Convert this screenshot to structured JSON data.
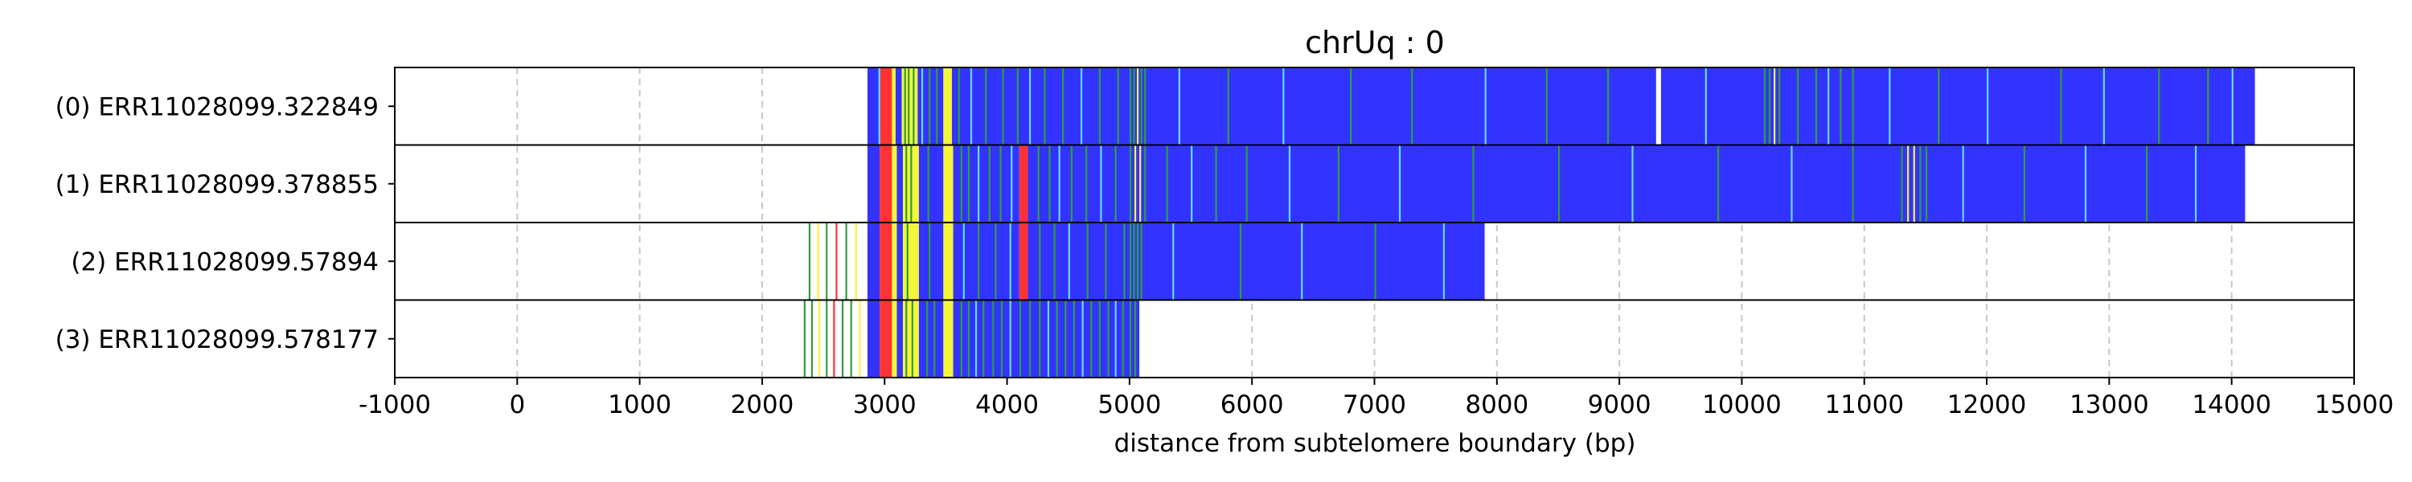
{
  "chart_data": {
    "type": "bar",
    "title": "chrUq : 0",
    "xlabel": "distance from subtelomere boundary (bp)",
    "ylabel": "",
    "xlim": [
      -1000,
      15000
    ],
    "xticks": [
      -1000,
      0,
      1000,
      2000,
      3000,
      4000,
      5000,
      6000,
      7000,
      8000,
      9000,
      10000,
      11000,
      12000,
      13000,
      14000,
      15000
    ],
    "xtick_labels": [
      "-1000",
      "0",
      "1000",
      "2000",
      "3000",
      "4000",
      "5000",
      "6000",
      "7000",
      "8000",
      "9000",
      "10000",
      "11000",
      "12000",
      "13000",
      "14000",
      "15000"
    ],
    "grid": "vertical dashed",
    "colors": {
      "background_repeat": "#3333ff",
      "variant_green": "#2e9e3e",
      "variant_yellow": "#f5f53c",
      "variant_red": "#ff3333",
      "variant_cyan": "#66d9ff",
      "grid": "#c8c8c8"
    },
    "reads": [
      {
        "label": "(0) ERR11028099.322849",
        "segments": [
          {
            "start": 2860,
            "end": 2960,
            "color": "#3333ff"
          },
          {
            "start": 2960,
            "end": 3060,
            "color": "#ff3333"
          },
          {
            "start": 3060,
            "end": 3090,
            "color": "#f5f53c"
          },
          {
            "start": 3090,
            "end": 3140,
            "color": "#3333ff"
          },
          {
            "start": 3140,
            "end": 3270,
            "color": "#f5f53c"
          },
          {
            "start": 3270,
            "end": 3480,
            "color": "#3333ff"
          },
          {
            "start": 3480,
            "end": 3550,
            "color": "#f5f53c"
          },
          {
            "start": 3550,
            "end": 9300,
            "color": "#3333ff"
          },
          {
            "start": 9340,
            "end": 14190,
            "color": "#3333ff"
          }
        ],
        "marks": [
          {
            "pos": 2950,
            "color": "#66d9ff"
          },
          {
            "pos": 3160,
            "color": "#2e9e3e"
          },
          {
            "pos": 3190,
            "color": "#2e9e3e"
          },
          {
            "pos": 3230,
            "color": "#2e9e3e"
          },
          {
            "pos": 3300,
            "color": "#66d9ff"
          },
          {
            "pos": 3360,
            "color": "#2e9e3e"
          },
          {
            "pos": 3420,
            "color": "#2e9e3e"
          },
          {
            "pos": 3600,
            "color": "#2e9e3e"
          },
          {
            "pos": 3700,
            "color": "#66d9ff"
          },
          {
            "pos": 3820,
            "color": "#2e9e3e"
          },
          {
            "pos": 3960,
            "color": "#2e9e3e"
          },
          {
            "pos": 4080,
            "color": "#2e9e3e"
          },
          {
            "pos": 4180,
            "color": "#66d9ff"
          },
          {
            "pos": 4300,
            "color": "#2e9e3e"
          },
          {
            "pos": 4450,
            "color": "#2e9e3e"
          },
          {
            "pos": 4600,
            "color": "#66d9ff"
          },
          {
            "pos": 4750,
            "color": "#2e9e3e"
          },
          {
            "pos": 4900,
            "color": "#2e9e3e"
          },
          {
            "pos": 5000,
            "color": "#2e9e3e"
          },
          {
            "pos": 5030,
            "color": "#2e9e3e"
          },
          {
            "pos": 5060,
            "color": "#f5f53c"
          },
          {
            "pos": 5090,
            "color": "#2e9e3e"
          },
          {
            "pos": 5120,
            "color": "#2e9e3e"
          },
          {
            "pos": 5400,
            "color": "#66d9ff"
          },
          {
            "pos": 5800,
            "color": "#2e9e3e"
          },
          {
            "pos": 6250,
            "color": "#66d9ff"
          },
          {
            "pos": 6800,
            "color": "#2e9e3e"
          },
          {
            "pos": 7300,
            "color": "#2e9e3e"
          },
          {
            "pos": 7900,
            "color": "#66d9ff"
          },
          {
            "pos": 8400,
            "color": "#2e9e3e"
          },
          {
            "pos": 8900,
            "color": "#2e9e3e"
          },
          {
            "pos": 9700,
            "color": "#66d9ff"
          },
          {
            "pos": 10180,
            "color": "#2e9e3e"
          },
          {
            "pos": 10220,
            "color": "#2e9e3e"
          },
          {
            "pos": 10260,
            "color": "#f5f53c"
          },
          {
            "pos": 10300,
            "color": "#2e9e3e"
          },
          {
            "pos": 10450,
            "color": "#2e9e3e"
          },
          {
            "pos": 10600,
            "color": "#2e9e3e"
          },
          {
            "pos": 10700,
            "color": "#66d9ff"
          },
          {
            "pos": 10800,
            "color": "#2e9e3e"
          },
          {
            "pos": 10900,
            "color": "#2e9e3e"
          },
          {
            "pos": 11200,
            "color": "#66d9ff"
          },
          {
            "pos": 11600,
            "color": "#2e9e3e"
          },
          {
            "pos": 12000,
            "color": "#66d9ff"
          },
          {
            "pos": 12600,
            "color": "#2e9e3e"
          },
          {
            "pos": 12950,
            "color": "#66d9ff"
          },
          {
            "pos": 13400,
            "color": "#2e9e3e"
          },
          {
            "pos": 13800,
            "color": "#2e9e3e"
          },
          {
            "pos": 14000,
            "color": "#66d9ff"
          }
        ]
      },
      {
        "label": "(1) ERR11028099.378855",
        "segments": [
          {
            "start": 2860,
            "end": 2960,
            "color": "#3333ff"
          },
          {
            "start": 2960,
            "end": 3060,
            "color": "#ff3333"
          },
          {
            "start": 3060,
            "end": 3100,
            "color": "#f5f53c"
          },
          {
            "start": 3100,
            "end": 3150,
            "color": "#3333ff"
          },
          {
            "start": 3150,
            "end": 3280,
            "color": "#f5f53c"
          },
          {
            "start": 3280,
            "end": 3480,
            "color": "#3333ff"
          },
          {
            "start": 3480,
            "end": 3560,
            "color": "#f5f53c"
          },
          {
            "start": 3560,
            "end": 4100,
            "color": "#3333ff"
          },
          {
            "start": 4100,
            "end": 4170,
            "color": "#ff3333"
          },
          {
            "start": 4170,
            "end": 14110,
            "color": "#3333ff"
          }
        ],
        "marks": [
          {
            "pos": 3170,
            "color": "#2e9e3e"
          },
          {
            "pos": 3210,
            "color": "#2e9e3e"
          },
          {
            "pos": 3350,
            "color": "#2e9e3e"
          },
          {
            "pos": 3620,
            "color": "#2e9e3e"
          },
          {
            "pos": 3680,
            "color": "#2e9e3e"
          },
          {
            "pos": 3760,
            "color": "#66d9ff"
          },
          {
            "pos": 3850,
            "color": "#2e9e3e"
          },
          {
            "pos": 3940,
            "color": "#2e9e3e"
          },
          {
            "pos": 4030,
            "color": "#66d9ff"
          },
          {
            "pos": 4250,
            "color": "#2e9e3e"
          },
          {
            "pos": 4340,
            "color": "#2e9e3e"
          },
          {
            "pos": 4420,
            "color": "#66d9ff"
          },
          {
            "pos": 4520,
            "color": "#2e9e3e"
          },
          {
            "pos": 4640,
            "color": "#2e9e3e"
          },
          {
            "pos": 4760,
            "color": "#66d9ff"
          },
          {
            "pos": 4880,
            "color": "#2e9e3e"
          },
          {
            "pos": 5000,
            "color": "#2e9e3e"
          },
          {
            "pos": 5040,
            "color": "#f5f53c"
          },
          {
            "pos": 5080,
            "color": "#f5f53c"
          },
          {
            "pos": 5120,
            "color": "#2e9e3e"
          },
          {
            "pos": 5300,
            "color": "#2e9e3e"
          },
          {
            "pos": 5500,
            "color": "#66d9ff"
          },
          {
            "pos": 5700,
            "color": "#2e9e3e"
          },
          {
            "pos": 5950,
            "color": "#2e9e3e"
          },
          {
            "pos": 6300,
            "color": "#66d9ff"
          },
          {
            "pos": 6700,
            "color": "#2e9e3e"
          },
          {
            "pos": 7200,
            "color": "#66d9ff"
          },
          {
            "pos": 7800,
            "color": "#2e9e3e"
          },
          {
            "pos": 8500,
            "color": "#2e9e3e"
          },
          {
            "pos": 9100,
            "color": "#66d9ff"
          },
          {
            "pos": 9800,
            "color": "#2e9e3e"
          },
          {
            "pos": 10400,
            "color": "#66d9ff"
          },
          {
            "pos": 10900,
            "color": "#2e9e3e"
          },
          {
            "pos": 11300,
            "color": "#2e9e3e"
          },
          {
            "pos": 11350,
            "color": "#f5f53c"
          },
          {
            "pos": 11400,
            "color": "#f5f53c"
          },
          {
            "pos": 11450,
            "color": "#2e9e3e"
          },
          {
            "pos": 11500,
            "color": "#2e9e3e"
          },
          {
            "pos": 11800,
            "color": "#66d9ff"
          },
          {
            "pos": 12300,
            "color": "#2e9e3e"
          },
          {
            "pos": 12800,
            "color": "#66d9ff"
          },
          {
            "pos": 13300,
            "color": "#2e9e3e"
          },
          {
            "pos": 13700,
            "color": "#66d9ff"
          }
        ]
      },
      {
        "label": "(2) ERR11028099.57894",
        "segments": [
          {
            "start": 2860,
            "end": 2960,
            "color": "#3333ff"
          },
          {
            "start": 2960,
            "end": 3060,
            "color": "#ff3333"
          },
          {
            "start": 3060,
            "end": 3100,
            "color": "#f5f53c"
          },
          {
            "start": 3100,
            "end": 3150,
            "color": "#3333ff"
          },
          {
            "start": 3150,
            "end": 3280,
            "color": "#f5f53c"
          },
          {
            "start": 3280,
            "end": 3480,
            "color": "#3333ff"
          },
          {
            "start": 3480,
            "end": 3560,
            "color": "#f5f53c"
          },
          {
            "start": 3560,
            "end": 4100,
            "color": "#3333ff"
          },
          {
            "start": 4100,
            "end": 4170,
            "color": "#ff3333"
          },
          {
            "start": 4170,
            "end": 7900,
            "color": "#3333ff"
          }
        ],
        "marks": [
          {
            "pos": 2380,
            "color": "#2e9e3e"
          },
          {
            "pos": 2450,
            "color": "#f5f53c"
          },
          {
            "pos": 2520,
            "color": "#2e9e3e"
          },
          {
            "pos": 2600,
            "color": "#ff3333"
          },
          {
            "pos": 2680,
            "color": "#2e9e3e"
          },
          {
            "pos": 2760,
            "color": "#f5f53c"
          },
          {
            "pos": 3180,
            "color": "#2e9e3e"
          },
          {
            "pos": 3360,
            "color": "#2e9e3e"
          },
          {
            "pos": 3640,
            "color": "#66d9ff"
          },
          {
            "pos": 3760,
            "color": "#2e9e3e"
          },
          {
            "pos": 3900,
            "color": "#2e9e3e"
          },
          {
            "pos": 4020,
            "color": "#66d9ff"
          },
          {
            "pos": 4260,
            "color": "#2e9e3e"
          },
          {
            "pos": 4380,
            "color": "#2e9e3e"
          },
          {
            "pos": 4500,
            "color": "#66d9ff"
          },
          {
            "pos": 4650,
            "color": "#2e9e3e"
          },
          {
            "pos": 4800,
            "color": "#2e9e3e"
          },
          {
            "pos": 4950,
            "color": "#2e9e3e"
          },
          {
            "pos": 5000,
            "color": "#2e9e3e"
          },
          {
            "pos": 5030,
            "color": "#2e9e3e"
          },
          {
            "pos": 5060,
            "color": "#2e9e3e"
          },
          {
            "pos": 5090,
            "color": "#2e9e3e"
          },
          {
            "pos": 5350,
            "color": "#66d9ff"
          },
          {
            "pos": 5900,
            "color": "#2e9e3e"
          },
          {
            "pos": 6400,
            "color": "#66d9ff"
          },
          {
            "pos": 7000,
            "color": "#2e9e3e"
          },
          {
            "pos": 7560,
            "color": "#66d9ff"
          }
        ]
      },
      {
        "label": "(3) ERR11028099.578177",
        "segments": [
          {
            "start": 2860,
            "end": 2960,
            "color": "#3333ff"
          },
          {
            "start": 2960,
            "end": 3060,
            "color": "#ff3333"
          },
          {
            "start": 3060,
            "end": 3100,
            "color": "#f5f53c"
          },
          {
            "start": 3100,
            "end": 3150,
            "color": "#3333ff"
          },
          {
            "start": 3150,
            "end": 3280,
            "color": "#f5f53c"
          },
          {
            "start": 3280,
            "end": 3480,
            "color": "#3333ff"
          },
          {
            "start": 3480,
            "end": 3560,
            "color": "#f5f53c"
          },
          {
            "start": 3560,
            "end": 5080,
            "color": "#3333ff"
          }
        ],
        "marks": [
          {
            "pos": 2340,
            "color": "#2e9e3e"
          },
          {
            "pos": 2400,
            "color": "#2e9e3e"
          },
          {
            "pos": 2460,
            "color": "#f5f53c"
          },
          {
            "pos": 2520,
            "color": "#2e9e3e"
          },
          {
            "pos": 2580,
            "color": "#ff3333"
          },
          {
            "pos": 2650,
            "color": "#2e9e3e"
          },
          {
            "pos": 2720,
            "color": "#2e9e3e"
          },
          {
            "pos": 2790,
            "color": "#f5f53c"
          },
          {
            "pos": 3170,
            "color": "#2e9e3e"
          },
          {
            "pos": 3220,
            "color": "#2e9e3e"
          },
          {
            "pos": 3340,
            "color": "#2e9e3e"
          },
          {
            "pos": 3400,
            "color": "#2e9e3e"
          },
          {
            "pos": 3620,
            "color": "#2e9e3e"
          },
          {
            "pos": 3680,
            "color": "#2e9e3e"
          },
          {
            "pos": 3740,
            "color": "#66d9ff"
          },
          {
            "pos": 3800,
            "color": "#2e9e3e"
          },
          {
            "pos": 3880,
            "color": "#2e9e3e"
          },
          {
            "pos": 3950,
            "color": "#2e9e3e"
          },
          {
            "pos": 4020,
            "color": "#66d9ff"
          },
          {
            "pos": 4100,
            "color": "#2e9e3e"
          },
          {
            "pos": 4180,
            "color": "#2e9e3e"
          },
          {
            "pos": 4260,
            "color": "#2e9e3e"
          },
          {
            "pos": 4330,
            "color": "#66d9ff"
          },
          {
            "pos": 4400,
            "color": "#2e9e3e"
          },
          {
            "pos": 4470,
            "color": "#2e9e3e"
          },
          {
            "pos": 4540,
            "color": "#2e9e3e"
          },
          {
            "pos": 4610,
            "color": "#66d9ff"
          },
          {
            "pos": 4680,
            "color": "#2e9e3e"
          },
          {
            "pos": 4750,
            "color": "#2e9e3e"
          },
          {
            "pos": 4820,
            "color": "#2e9e3e"
          },
          {
            "pos": 4880,
            "color": "#66d9ff"
          },
          {
            "pos": 4940,
            "color": "#2e9e3e"
          },
          {
            "pos": 5000,
            "color": "#2e9e3e"
          },
          {
            "pos": 5040,
            "color": "#2e9e3e"
          }
        ]
      }
    ]
  }
}
